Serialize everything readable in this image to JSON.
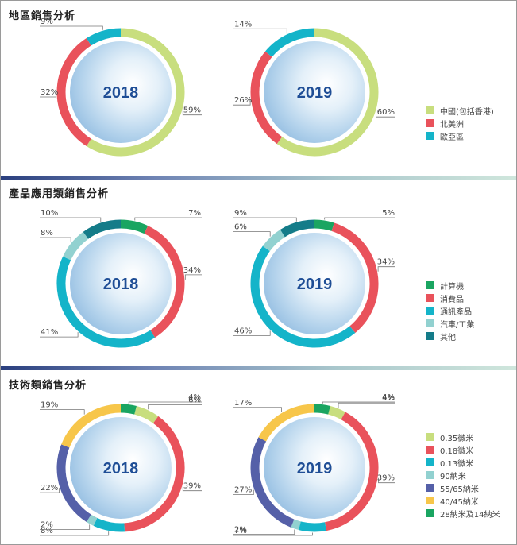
{
  "sections": [
    {
      "title": "地區銷售分析"
    },
    {
      "title": "產品應用類銷售分析"
    },
    {
      "title": "技術類銷售分析"
    }
  ],
  "chart_data": [
    {
      "type": "pie",
      "title": "地區銷售分析",
      "label": "2018",
      "categories": [
        "中國(包括香港)",
        "北美洲",
        "歐亞區"
      ],
      "values": [
        59,
        32,
        9
      ],
      "colors": [
        "#c8de7e",
        "#e9525b",
        "#14b4c9"
      ],
      "value_labels": [
        "59%",
        "32%",
        "9%"
      ]
    },
    {
      "type": "pie",
      "title": "地區銷售分析",
      "label": "2019",
      "categories": [
        "中國(包括香港)",
        "北美洲",
        "歐亞區"
      ],
      "values": [
        60,
        26,
        14
      ],
      "colors": [
        "#c8de7e",
        "#e9525b",
        "#14b4c9"
      ],
      "value_labels": [
        "60%",
        "26%",
        "14%"
      ]
    },
    {
      "type": "pie",
      "title": "產品應用類銷售分析",
      "label": "2018",
      "categories": [
        "計算機",
        "消費品",
        "通訊產品",
        "汽車/工業",
        "其他"
      ],
      "values": [
        7,
        34,
        41,
        8,
        10
      ],
      "colors": [
        "#1aa561",
        "#e9525b",
        "#14b4c9",
        "#92d1d0",
        "#147c89"
      ],
      "value_labels": [
        "7%",
        "34%",
        "41%",
        "8%",
        "10%"
      ]
    },
    {
      "type": "pie",
      "title": "產品應用類銷售分析",
      "label": "2019",
      "categories": [
        "計算機",
        "消費品",
        "通訊產品",
        "汽車/工業",
        "其他"
      ],
      "values": [
        5,
        34,
        46,
        6,
        9
      ],
      "colors": [
        "#1aa561",
        "#e9525b",
        "#14b4c9",
        "#92d1d0",
        "#147c89"
      ],
      "value_labels": [
        "5%",
        "34%",
        "46%",
        "6%",
        "9%"
      ]
    },
    {
      "type": "pie",
      "title": "技術類銷售分析",
      "label": "2018",
      "categories": [
        "28納米及14納米",
        "0.35微米",
        "0.18微米",
        "0.13微米",
        "90納米",
        "55/65納米",
        "40/45納米"
      ],
      "values": [
        4,
        6,
        39,
        8,
        2,
        22,
        19
      ],
      "colors": [
        "#1aa561",
        "#c8de7e",
        "#e9525b",
        "#14b4c9",
        "#92d1d0",
        "#5560a8",
        "#f7c64a"
      ],
      "value_labels": [
        "4%",
        "6%",
        "39%",
        "8%",
        "2%",
        "22%",
        "19%"
      ]
    },
    {
      "type": "pie",
      "title": "技術類銷售分析",
      "label": "2019",
      "categories": [
        "28納米及14納米",
        "0.35微米",
        "0.18微米",
        "0.13微米",
        "90納米",
        "55/65納米",
        "40/45納米"
      ],
      "values": [
        4,
        4,
        39,
        7,
        2,
        27,
        17
      ],
      "colors": [
        "#1aa561",
        "#c8de7e",
        "#e9525b",
        "#14b4c9",
        "#92d1d0",
        "#5560a8",
        "#f7c64a"
      ],
      "value_labels": [
        "4%",
        "4%",
        "39%",
        "7%",
        "2%",
        "27%",
        "17%"
      ]
    }
  ],
  "legends": [
    {
      "items": [
        {
          "label": "中國(包括香港)",
          "color": "#c8de7e"
        },
        {
          "label": "北美洲",
          "color": "#e9525b"
        },
        {
          "label": "歐亞區",
          "color": "#14b4c9"
        }
      ]
    },
    {
      "items": [
        {
          "label": "計算機",
          "color": "#1aa561"
        },
        {
          "label": "消費品",
          "color": "#e9525b"
        },
        {
          "label": "通訊產品",
          "color": "#14b4c9"
        },
        {
          "label": "汽車/工業",
          "color": "#92d1d0"
        },
        {
          "label": "其他",
          "color": "#147c89"
        }
      ]
    },
    {
      "items": [
        {
          "label": "0.35微米",
          "color": "#c8de7e"
        },
        {
          "label": "0.18微米",
          "color": "#e9525b"
        },
        {
          "label": "0.13微米",
          "color": "#14b4c9"
        },
        {
          "label": "90納米",
          "color": "#92d1d0"
        },
        {
          "label": "55/65納米",
          "color": "#5560a8"
        },
        {
          "label": "40/45納米",
          "color": "#f7c64a"
        },
        {
          "label": "28納米及14納米",
          "color": "#1aa561"
        }
      ]
    }
  ]
}
